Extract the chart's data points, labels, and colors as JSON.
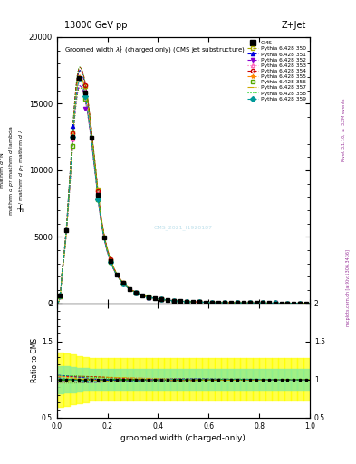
{
  "title_top": "13000 GeV pp",
  "title_right": "Z+Jet",
  "plot_title": "Groomed width $\\lambda_1^1$ (charged only) (CMS jet substructure)",
  "xlabel": "groomed width (charged-only)",
  "ylabel_main": "mathrm d$^2$N\nmathrm d $p_T$ mathrm d lambda",
  "ylabel_ratio": "Ratio to CMS",
  "right_label": "mcplots.cern.ch [arXiv:1306.3436]",
  "right_label2": "Rivet 3.1.10, $\\geq$ 3.2M events",
  "watermark": "CMS_2021_I1920187",
  "cms_label": "CMS",
  "series": [
    {
      "label": "Pythia 6.428 350",
      "color": "#aaaa00",
      "marker": "s",
      "linestyle": "--",
      "filled": false
    },
    {
      "label": "Pythia 6.428 351",
      "color": "#0000dd",
      "marker": "^",
      "linestyle": "--",
      "filled": true
    },
    {
      "label": "Pythia 6.428 352",
      "color": "#8800cc",
      "marker": "v",
      "linestyle": "--",
      "filled": true
    },
    {
      "label": "Pythia 6.428 353",
      "color": "#ff66bb",
      "marker": "^",
      "linestyle": ":",
      "filled": false
    },
    {
      "label": "Pythia 6.428 354",
      "color": "#cc0000",
      "marker": "o",
      "linestyle": "--",
      "filled": false
    },
    {
      "label": "Pythia 6.428 355",
      "color": "#ff8800",
      "marker": "*",
      "linestyle": "--",
      "filled": true
    },
    {
      "label": "Pythia 6.428 356",
      "color": "#55aa00",
      "marker": "s",
      "linestyle": ":",
      "filled": false
    },
    {
      "label": "Pythia 6.428 357",
      "color": "#ccaa00",
      "marker": "None",
      "linestyle": "-.",
      "filled": false
    },
    {
      "label": "Pythia 6.428 358",
      "color": "#00cc00",
      "marker": "None",
      "linestyle": ":",
      "filled": false
    },
    {
      "label": "Pythia 6.428 359",
      "color": "#009999",
      "marker": "D",
      "linestyle": "--",
      "filled": true
    }
  ],
  "ylim_main": [
    0,
    20000
  ],
  "ylim_ratio": [
    0.5,
    2.0
  ],
  "ratio_green_inner": [
    0.88,
    1.12
  ],
  "ratio_yellow_outer": [
    0.72,
    1.28
  ],
  "background_color": "#ffffff"
}
